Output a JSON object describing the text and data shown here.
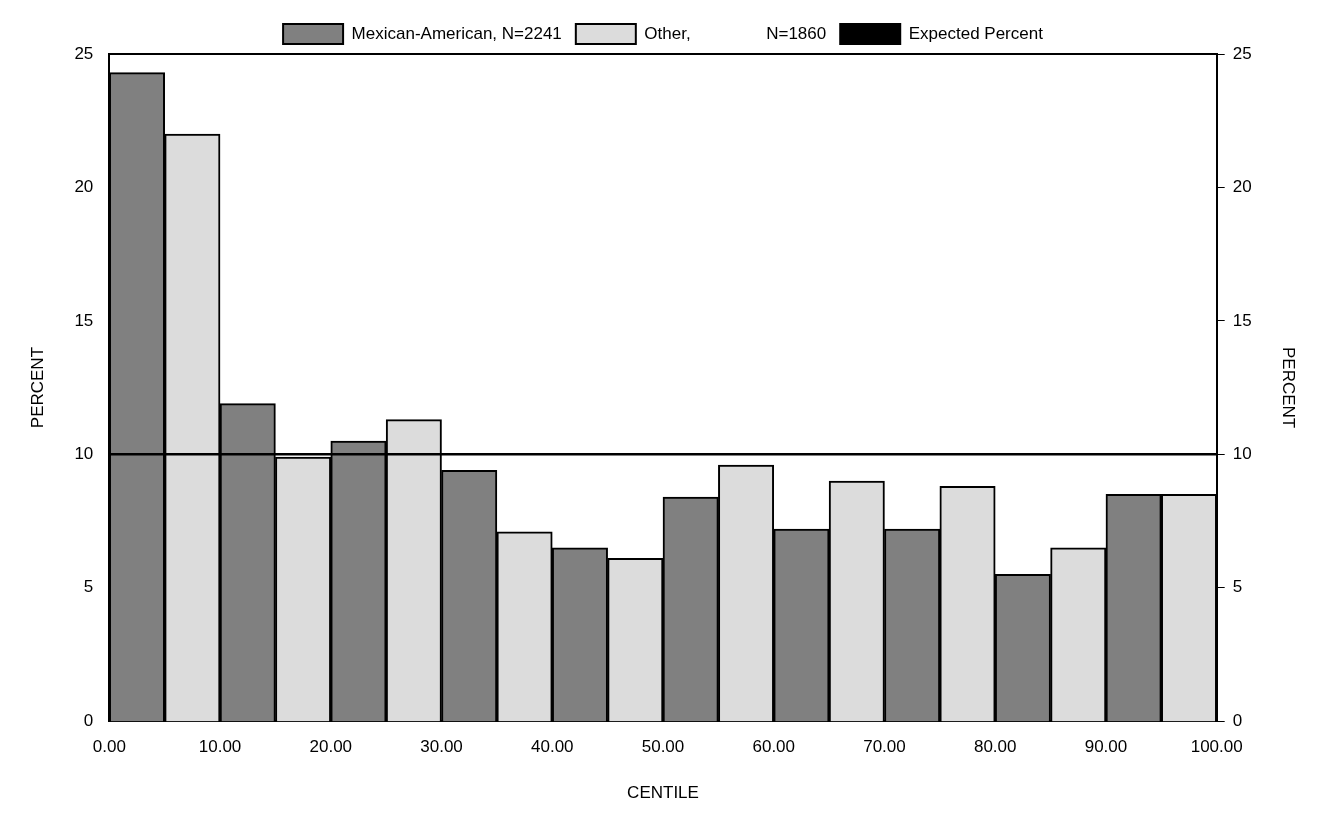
{
  "chart_data": {
    "type": "bar",
    "xlabel": "CENTILE",
    "ylabel": "PERCENT",
    "y2label": "PERCENT",
    "x": [
      5,
      15,
      25,
      35,
      45,
      55,
      65,
      75,
      85,
      95
    ],
    "series": [
      {
        "name": "Mexican-American, N=2241",
        "color": "#808080",
        "values": [
          24.3,
          11.9,
          10.5,
          9.4,
          6.5,
          8.4,
          7.2,
          7.2,
          5.5,
          8.5
        ]
      },
      {
        "name": "Other,                N=1860",
        "color": "#dcdcdc",
        "values": [
          22.0,
          9.9,
          11.3,
          7.1,
          6.1,
          9.6,
          9.0,
          8.8,
          6.5,
          8.5
        ]
      },
      {
        "name": "Expected Percent",
        "type": "line",
        "color": "#000000",
        "x": [
          0,
          100
        ],
        "values": [
          10,
          10
        ]
      }
    ],
    "xlim": [
      0,
      100
    ],
    "xticks": [
      {
        "value": 0,
        "label": "0.00"
      },
      {
        "value": 10,
        "label": "10.00"
      },
      {
        "value": 20,
        "label": "20.00"
      },
      {
        "value": 30,
        "label": "30.00"
      },
      {
        "value": 40,
        "label": "40.00"
      },
      {
        "value": 50,
        "label": "50.00"
      },
      {
        "value": 60,
        "label": "60.00"
      },
      {
        "value": 70,
        "label": "70.00"
      },
      {
        "value": 80,
        "label": "80.00"
      },
      {
        "value": 90,
        "label": "90.00"
      },
      {
        "value": 100,
        "label": "100.00"
      }
    ],
    "ylim": [
      0,
      25
    ],
    "yticks": [
      0,
      5,
      10,
      15,
      20,
      25
    ],
    "y2lim": [
      0,
      25
    ],
    "y2ticks": [
      0,
      5,
      10,
      15,
      20,
      25
    ],
    "grid": false,
    "legend": "top",
    "marker": "none",
    "line_style": "solid"
  }
}
